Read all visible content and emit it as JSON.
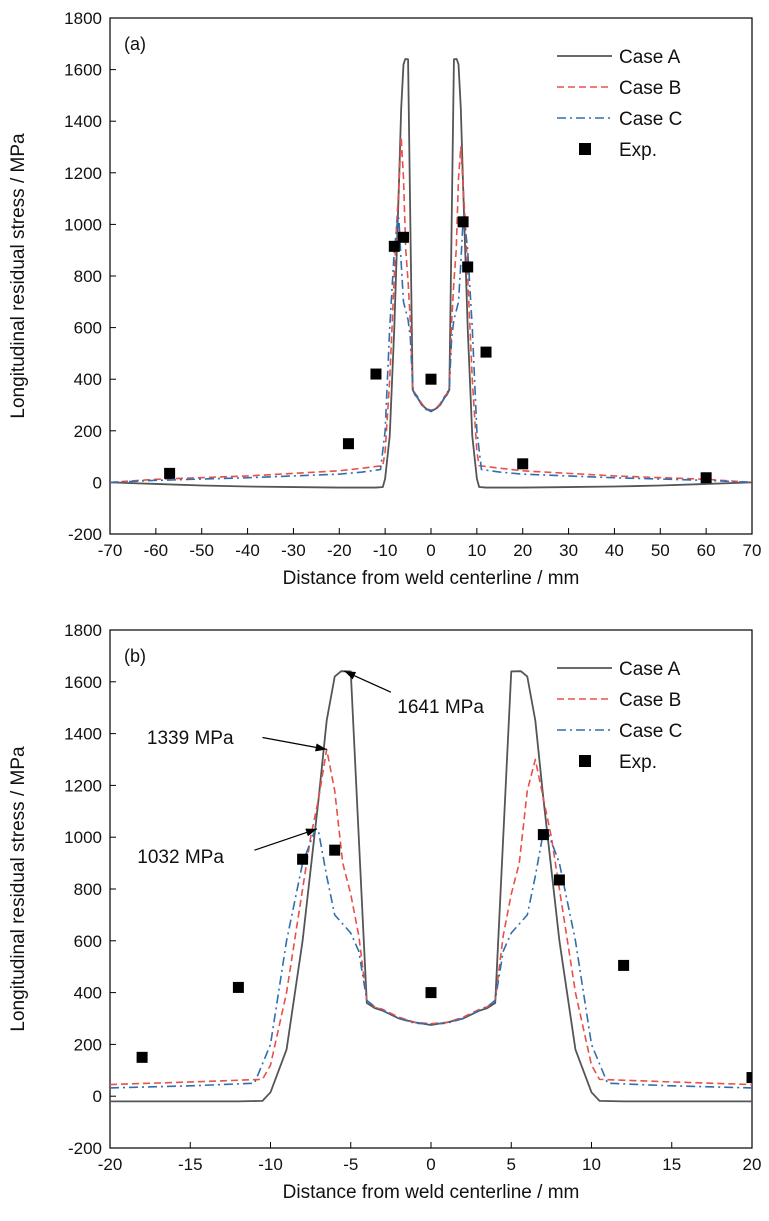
{
  "chart_data": [
    {
      "type": "line",
      "panel_label": "(a)",
      "xlabel": "Distance from weld centerline / mm",
      "ylabel": "Longitudinal residual stress / MPa",
      "xlim": [
        -70,
        70
      ],
      "ylim": [
        -200,
        1800
      ],
      "xticks": [
        -70,
        -60,
        -50,
        -40,
        -30,
        -20,
        -10,
        0,
        10,
        20,
        30,
        40,
        50,
        60,
        70
      ],
      "yticks": [
        -200,
        0,
        200,
        400,
        600,
        800,
        1000,
        1200,
        1400,
        1600,
        1800
      ],
      "legend_position": "top-right",
      "grid": false,
      "series": [
        {
          "name": "Case A",
          "color": "#555555",
          "style": "solid",
          "x": [
            -70,
            -60,
            -50,
            -40,
            -30,
            -20,
            -12,
            -10.5,
            -10,
            -9,
            -8,
            -7,
            -6.5,
            -6,
            -5.6,
            -5,
            -4.5,
            -4,
            -3.5,
            -3,
            -2,
            -1,
            0,
            1,
            2,
            3,
            3.5,
            4,
            4.5,
            5,
            5.6,
            6,
            6.5,
            7,
            8,
            9,
            10,
            10.5,
            12,
            20,
            30,
            40,
            50,
            60,
            70
          ],
          "y": [
            0,
            -6,
            -12,
            -16,
            -18,
            -20,
            -20,
            -18,
            15,
            180,
            600,
            1150,
            1450,
            1620,
            1641,
            1640,
            1000,
            360,
            340,
            330,
            300,
            285,
            275,
            285,
            300,
            330,
            340,
            360,
            1000,
            1640,
            1641,
            1620,
            1450,
            1150,
            600,
            180,
            15,
            -18,
            -20,
            -20,
            -18,
            -16,
            -12,
            -6,
            0
          ]
        },
        {
          "name": "Case B",
          "color": "#e8504a",
          "style": "dashed",
          "x": [
            -70,
            -60,
            -40,
            -20,
            -15,
            -10.5,
            -10,
            -9,
            -8,
            -7.5,
            -7,
            -6.5,
            -6,
            -5.5,
            -5,
            -4.5,
            -4,
            -3.5,
            -3,
            -2,
            -1,
            0,
            1,
            2,
            3,
            3.5,
            4,
            4.5,
            5,
            5.5,
            6,
            6.5,
            7,
            7.5,
            8,
            9,
            10,
            10.5,
            15,
            20,
            40,
            60,
            70
          ],
          "y": [
            0,
            12,
            25,
            45,
            55,
            65,
            120,
            400,
            800,
            1000,
            1150,
            1339,
            1180,
            900,
            780,
            620,
            370,
            345,
            335,
            305,
            285,
            280,
            285,
            305,
            335,
            345,
            370,
            620,
            780,
            900,
            1180,
            1300,
            1150,
            1000,
            800,
            400,
            120,
            65,
            55,
            45,
            25,
            12,
            0
          ]
        },
        {
          "name": "Case C",
          "color": "#2f6fb0",
          "style": "dashdot",
          "x": [
            -70,
            -60,
            -40,
            -20,
            -15,
            -11,
            -10,
            -9,
            -8,
            -7.2,
            -7,
            -6.5,
            -6,
            -5,
            -4.5,
            -4,
            -3.5,
            -3,
            -2,
            -1,
            0,
            1,
            2,
            3,
            3.5,
            4,
            4.5,
            5,
            6,
            6.5,
            7,
            7.2,
            8,
            9,
            10,
            11,
            15,
            20,
            40,
            60,
            70
          ],
          "y": [
            0,
            8,
            18,
            32,
            40,
            50,
            200,
            600,
            900,
            1032,
            1020,
            850,
            700,
            630,
            560,
            370,
            345,
            330,
            300,
            282,
            278,
            282,
            300,
            330,
            345,
            370,
            560,
            630,
            700,
            850,
            1020,
            1032,
            900,
            600,
            200,
            50,
            40,
            32,
            18,
            8,
            0
          ]
        },
        {
          "name": "Exp.",
          "color": "#000000",
          "style": "marker",
          "x": [
            -57,
            -18,
            -12,
            -8,
            -6,
            0,
            7,
            8,
            12,
            20,
            60
          ],
          "y": [
            35,
            150,
            420,
            915,
            950,
            400,
            1010,
            835,
            505,
            72,
            18
          ]
        }
      ],
      "annotations": []
    },
    {
      "type": "line",
      "panel_label": "(b)",
      "xlabel": "Distance from weld centerline / mm",
      "ylabel": "Longitudinal residual stress / MPa",
      "xlim": [
        -20,
        20
      ],
      "ylim": [
        -200,
        1800
      ],
      "xticks": [
        -20,
        -15,
        -10,
        -5,
        0,
        5,
        10,
        15,
        20
      ],
      "yticks": [
        -200,
        0,
        200,
        400,
        600,
        800,
        1000,
        1200,
        1400,
        1600,
        1800
      ],
      "legend_position": "top-right",
      "grid": false,
      "series": [
        {
          "name": "Case A",
          "color": "#555555",
          "style": "solid",
          "x": [
            -20,
            -15,
            -12,
            -10.5,
            -10,
            -9,
            -8,
            -7,
            -6.5,
            -6,
            -5.6,
            -5,
            -4.5,
            -4,
            -3.5,
            -3,
            -2,
            -1,
            0,
            1,
            2,
            3,
            3.5,
            4,
            4.5,
            5,
            5.6,
            6,
            6.5,
            7,
            8,
            9,
            10,
            10.5,
            12,
            15,
            20
          ],
          "y": [
            -20,
            -20,
            -20,
            -18,
            15,
            180,
            600,
            1150,
            1450,
            1620,
            1641,
            1640,
            1000,
            360,
            340,
            330,
            300,
            285,
            275,
            285,
            300,
            330,
            340,
            360,
            1000,
            1640,
            1641,
            1620,
            1450,
            1150,
            600,
            180,
            15,
            -18,
            -20,
            -20,
            -20
          ]
        },
        {
          "name": "Case B",
          "color": "#e8504a",
          "style": "dashed",
          "x": [
            -20,
            -15,
            -10.5,
            -10,
            -9,
            -8,
            -7.5,
            -7,
            -6.5,
            -6,
            -5.5,
            -5,
            -4.5,
            -4,
            -3.5,
            -3,
            -2,
            -1,
            0,
            1,
            2,
            3,
            3.5,
            4,
            4.5,
            5,
            5.5,
            6,
            6.5,
            7,
            7.5,
            8,
            9,
            10,
            10.5,
            15,
            20
          ],
          "y": [
            45,
            55,
            65,
            120,
            400,
            800,
            1000,
            1150,
            1339,
            1180,
            900,
            780,
            620,
            370,
            345,
            335,
            305,
            285,
            280,
            285,
            305,
            335,
            345,
            370,
            620,
            780,
            900,
            1180,
            1300,
            1150,
            1000,
            800,
            400,
            120,
            65,
            55,
            45
          ]
        },
        {
          "name": "Case C",
          "color": "#2f6fb0",
          "style": "dashdot",
          "x": [
            -20,
            -15,
            -11,
            -10,
            -9,
            -8,
            -7.2,
            -7,
            -6.5,
            -6,
            -5,
            -4.5,
            -4,
            -3.5,
            -3,
            -2,
            -1,
            0,
            1,
            2,
            3,
            3.5,
            4,
            4.5,
            5,
            6,
            6.5,
            7,
            7.2,
            8,
            9,
            10,
            11,
            15,
            20
          ],
          "y": [
            32,
            40,
            50,
            200,
            600,
            900,
            1032,
            1020,
            850,
            700,
            630,
            560,
            370,
            345,
            330,
            300,
            282,
            278,
            282,
            300,
            330,
            345,
            370,
            560,
            630,
            700,
            850,
            1020,
            1032,
            900,
            600,
            200,
            50,
            40,
            32
          ]
        },
        {
          "name": "Exp.",
          "color": "#000000",
          "style": "marker",
          "x": [
            -18,
            -12,
            -8,
            -6,
            0,
            7,
            8,
            12,
            20
          ],
          "y": [
            150,
            420,
            915,
            950,
            400,
            1010,
            835,
            505,
            72
          ]
        }
      ],
      "annotations": [
        {
          "text": "1641 MPa",
          "from": [
            -2.5,
            1560
          ],
          "to": [
            -5.4,
            1641
          ],
          "text_at": [
            -2.1,
            1480
          ]
        },
        {
          "text": "1339 MPa",
          "from": [
            -10.5,
            1385
          ],
          "to": [
            -6.5,
            1339
          ],
          "text_at": [
            -17.7,
            1360
          ]
        },
        {
          "text": "1032 MPa",
          "from": [
            -11,
            950
          ],
          "to": [
            -7.1,
            1032
          ],
          "text_at": [
            -18.3,
            900
          ]
        }
      ]
    }
  ]
}
